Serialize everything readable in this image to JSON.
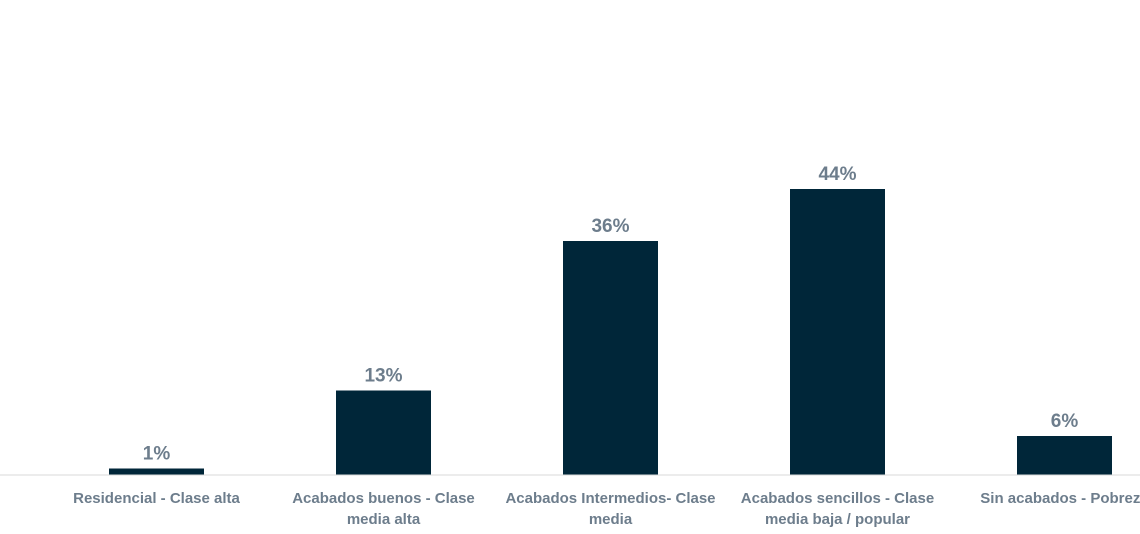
{
  "chart_data": {
    "type": "bar",
    "categories": [
      [
        "Residencial - Clase alta"
      ],
      [
        "Acabados buenos - Clase",
        "media alta"
      ],
      [
        "Acabados Intermedios- Clase",
        "media"
      ],
      [
        "Acabados sencillos - Clase",
        "media baja / popular"
      ],
      [
        "Sin acabados - Pobreza"
      ]
    ],
    "values": [
      1,
      13,
      36,
      44,
      6
    ],
    "value_labels": [
      "1%",
      "13%",
      "36%",
      "44%",
      "6%"
    ],
    "ylim": [
      0,
      70
    ],
    "grid": false,
    "legend": "none",
    "bar_color": "#002639",
    "label_color": "#6d7d8c"
  }
}
